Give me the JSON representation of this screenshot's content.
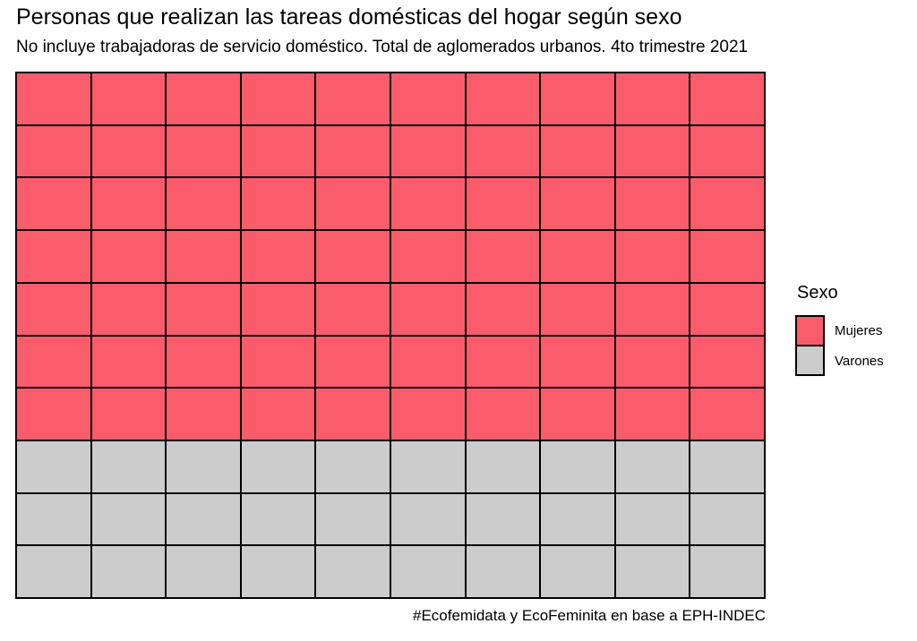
{
  "header": {
    "title": "Personas que realizan las tareas domésticas del hogar según sexo",
    "subtitle": "No incluye trabajadoras de servicio doméstico. Total de aglomerados urbanos. 4to trimestre 2021"
  },
  "chart_data": {
    "type": "waffle",
    "title": "Personas que realizan las tareas domésticas del hogar según sexo",
    "subtitle": "No incluye trabajadoras de servicio doméstico. Total de aglomerados urbanos. 4to trimestre 2021",
    "caption": "#Ecofemidata y EcoFeminita en base a EPH-INDEC",
    "grid": {
      "rows": 10,
      "cols": 10,
      "total_cells": 100,
      "cell_unit_percent": 1
    },
    "fill_order": "top-to-bottom",
    "series": [
      {
        "name": "Mujeres",
        "cells": 70,
        "percent": 70,
        "color": "#FA5C6C"
      },
      {
        "name": "Varones",
        "cells": 30,
        "percent": 30,
        "color": "#CCCCCC"
      }
    ],
    "legend_title": "Sexo",
    "legend_position": "right",
    "cell_border_color": "#000000",
    "background_color": "#FFFFFF"
  },
  "legend": {
    "title": "Sexo",
    "items": [
      {
        "label": "Mujeres",
        "color": "#FA5C6C",
        "icon": "swatch-square"
      },
      {
        "label": "Varones",
        "color": "#CCCCCC",
        "icon": "swatch-square"
      }
    ]
  },
  "caption": {
    "text": "#Ecofemidata y EcoFeminita en base a EPH-INDEC"
  }
}
